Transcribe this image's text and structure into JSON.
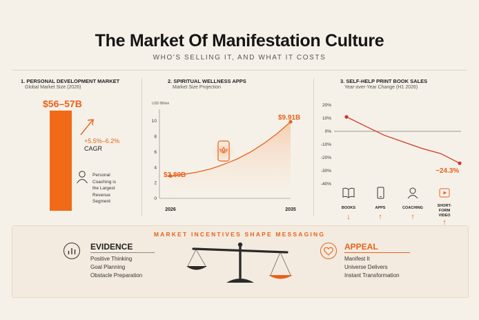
{
  "title": "The Market Of Manifestation Culture",
  "subtitle": "WHO'S SELLING IT, AND WHAT IT COSTS",
  "colors": {
    "accent": "#e8611a",
    "background": "#f6f1e8",
    "dark": "#222222"
  },
  "panel1": {
    "heading": "1. PERSONAL DEVELOPMENT MARKET",
    "subheading": "Global Market Size (2026)",
    "value": "$56–57B",
    "cagr_value": "+5.5%–6.2%",
    "cagr_label": "CAGR",
    "note_lines": [
      "Personal",
      "Coaching is",
      "the Largest",
      "Revenue",
      "Segment"
    ],
    "icon": "person-icon"
  },
  "panel2": {
    "heading": "2. SPIRITUAL WELLNESS APPS",
    "subheading": "Market Size Projection",
    "unit": "USD Billion",
    "start_label": "$2.89B",
    "end_label": "$9.91B",
    "icon": "phone-lotus-icon",
    "chart_data": {
      "type": "line",
      "x": [
        2026,
        2027,
        2028,
        2029,
        2030,
        2031,
        2032,
        2033,
        2034,
        2035
      ],
      "values": [
        2.89,
        3.1,
        3.4,
        3.8,
        4.4,
        5.1,
        6.0,
        7.1,
        8.4,
        9.91
      ],
      "x_tick_labels": [
        "2026",
        "2035"
      ],
      "y_ticks": [
        2,
        4,
        6,
        8,
        10
      ],
      "ylim": [
        0,
        11
      ]
    }
  },
  "panel3": {
    "heading": "3. SELF-HELP PRINT BOOK SALES",
    "subheading": "Year-over-Year Change (H1 2026)",
    "end_label": "−24.3%",
    "chart_data": {
      "type": "line",
      "x": [
        1,
        2,
        3,
        4,
        5,
        6,
        7
      ],
      "values": [
        11,
        4,
        -3,
        -8,
        -13,
        -17,
        -24.3
      ],
      "y_ticks": [
        "20%",
        "10%",
        "0%",
        "-10%",
        "-20%",
        "-30%",
        "-40%"
      ],
      "ylim": [
        -40,
        20
      ]
    },
    "categories": [
      {
        "label": "BOOKS",
        "icon": "book-icon",
        "trend": "down",
        "arrow_icon": "arrow-down-icon"
      },
      {
        "label": "APPS",
        "icon": "phone-icon",
        "trend": "up",
        "arrow_icon": "arrow-up-icon"
      },
      {
        "label": "COACHING",
        "icon": "person-icon",
        "trend": "up",
        "arrow_icon": "arrow-up-icon"
      },
      {
        "label": "SHORT-FORM VIDEO",
        "label_lines": [
          "SHORT-FORM",
          "VIDEO"
        ],
        "icon": "video-play-icon",
        "trend": "up",
        "arrow_icon": "arrow-up-icon"
      }
    ]
  },
  "bottom": {
    "heading": "MARKET INCENTIVES SHAPE MESSAGING",
    "evidence": {
      "title": "EVIDENCE",
      "icon": "bar-chart-icon",
      "items": [
        "Positive Thinking",
        "Goal Planning",
        "Obstacle Preparation"
      ]
    },
    "appeal": {
      "title": "APPEAL",
      "icon": "heart-icon",
      "items": [
        "Manifest It",
        "Universe Delivers",
        "Instant Transformation"
      ]
    },
    "center_icon": "balance-scale-icon"
  }
}
